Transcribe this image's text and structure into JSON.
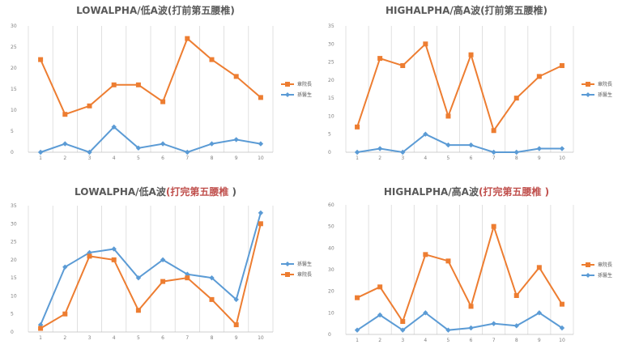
{
  "chart_data": [
    {
      "type": "line",
      "title_main": "LOWALPHA/低A波(打前第五腰椎)",
      "title_red": "",
      "title_tail": "",
      "x": [
        1,
        2,
        3,
        4,
        5,
        6,
        7,
        8,
        9,
        10
      ],
      "ylim": [
        0,
        30
      ],
      "yticks": [
        0,
        5,
        10,
        15,
        20,
        25,
        30
      ],
      "legend_position": "right",
      "series": [
        {
          "name": "章院長",
          "color": "#ed7d31",
          "marker": "square",
          "values": [
            22,
            9,
            11,
            16,
            16,
            12,
            27,
            22,
            18,
            13
          ]
        },
        {
          "name": "孫醫生",
          "color": "#5b9bd5",
          "marker": "diamond",
          "values": [
            0,
            2,
            0,
            6,
            1,
            2,
            0,
            2,
            3,
            2
          ]
        }
      ]
    },
    {
      "type": "line",
      "title_main": "HIGHALPHA/高A波(打前第五腰椎)",
      "title_red": "",
      "title_tail": "",
      "x": [
        1,
        2,
        3,
        4,
        5,
        6,
        7,
        8,
        9,
        10
      ],
      "ylim": [
        0,
        35
      ],
      "yticks": [
        0,
        5,
        10,
        15,
        20,
        25,
        30,
        35
      ],
      "legend_position": "right",
      "series": [
        {
          "name": "章院長",
          "color": "#ed7d31",
          "marker": "square",
          "values": [
            7,
            26,
            24,
            30,
            10,
            27,
            6,
            15,
            21,
            24
          ]
        },
        {
          "name": "孫醫生",
          "color": "#5b9bd5",
          "marker": "diamond",
          "values": [
            0,
            1,
            0,
            5,
            2,
            2,
            0,
            0,
            1,
            1
          ]
        }
      ]
    },
    {
      "type": "line",
      "title_main": "LOWALPHA/低A波",
      "title_red": "(打完第五腰椎 ",
      "title_tail": ")",
      "x": [
        1,
        2,
        3,
        4,
        5,
        6,
        7,
        8,
        9,
        10
      ],
      "ylim": [
        0,
        35
      ],
      "yticks": [
        0,
        5,
        10,
        15,
        20,
        25,
        30,
        35
      ],
      "legend_position": "right",
      "series": [
        {
          "name": "孫醫生",
          "color": "#5b9bd5",
          "marker": "diamond",
          "values": [
            2,
            18,
            22,
            23,
            15,
            20,
            16,
            15,
            9,
            33
          ]
        },
        {
          "name": "章院長",
          "color": "#ed7d31",
          "marker": "square",
          "values": [
            1,
            5,
            21,
            20,
            6,
            14,
            15,
            9,
            2,
            30
          ]
        }
      ]
    },
    {
      "type": "line",
      "title_main": "HIGHALPHA/高A波",
      "title_red": "(打完第五腰椎 )",
      "title_tail": "",
      "x": [
        1,
        2,
        3,
        4,
        5,
        6,
        7,
        8,
        9,
        10
      ],
      "ylim": [
        0,
        60
      ],
      "yticks": [
        0,
        10,
        20,
        30,
        40,
        50,
        60
      ],
      "legend_position": "right",
      "series": [
        {
          "name": "章院長",
          "color": "#ed7d31",
          "marker": "square",
          "values": [
            17,
            22,
            6,
            37,
            34,
            13,
            50,
            18,
            31,
            14
          ]
        },
        {
          "name": "孫醫生",
          "color": "#5b9bd5",
          "marker": "diamond",
          "values": [
            2,
            9,
            2,
            10,
            2,
            3,
            5,
            4,
            10,
            3
          ]
        }
      ]
    }
  ]
}
